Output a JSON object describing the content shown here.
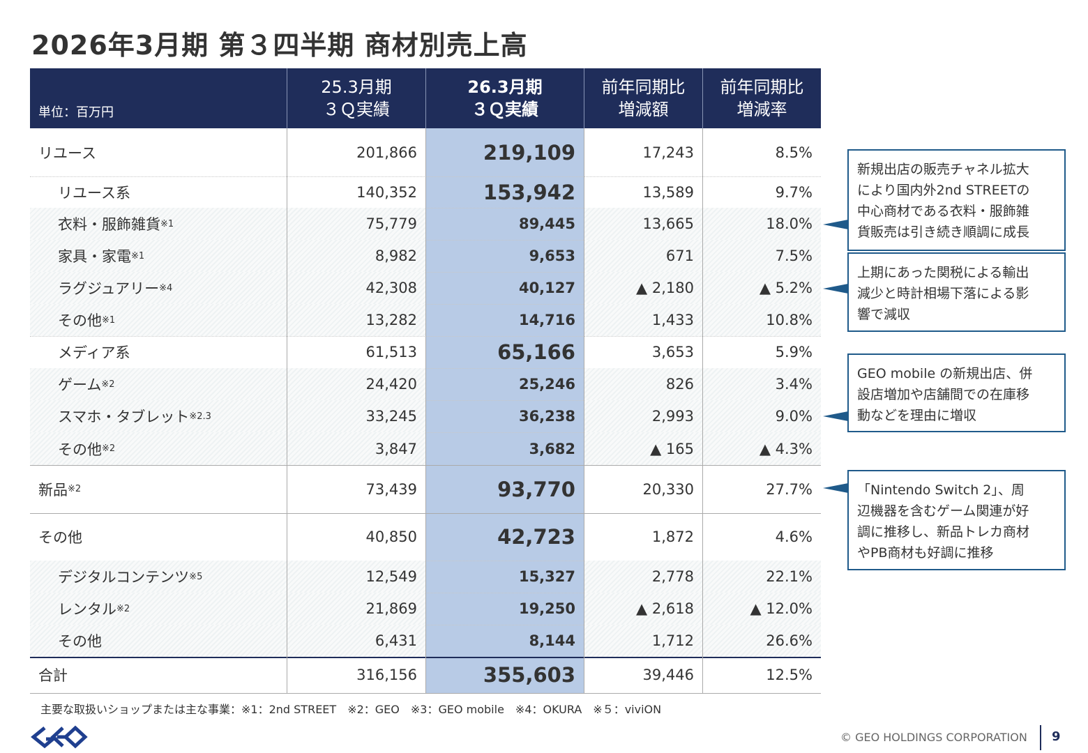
{
  "title": "2026年3月期 第３四半期 商材別売上高",
  "table": {
    "unit": "単位：百万円",
    "columns": [
      {
        "lines": [
          "25.3月期",
          "３Ｑ実績"
        ]
      },
      {
        "lines": [
          "26.3月期",
          "３Ｑ実績"
        ]
      },
      {
        "lines": [
          "前年同期比",
          "増減額"
        ]
      },
      {
        "lines": [
          "前年同期比",
          "増減率"
        ]
      }
    ],
    "rows": [
      {
        "label": "リユース",
        "cells": [
          "201,866",
          "219,109",
          "17,243",
          "8.5%"
        ]
      },
      {
        "label": "リユース系",
        "cells": [
          "140,352",
          "153,942",
          "13,589",
          "9.7%"
        ]
      },
      {
        "label": "衣料・服飾雑貨",
        "note": "※1",
        "cells": [
          "75,779",
          "89,445",
          "13,665",
          "18.0%"
        ]
      },
      {
        "label": "家具・家電",
        "note": "※1",
        "cells": [
          "8,982",
          "9,653",
          "671",
          "7.5%"
        ]
      },
      {
        "label": "ラグジュアリー",
        "note": "※4",
        "cells": [
          "42,308",
          "40,127",
          "▲ 2,180",
          "▲ 5.2%"
        ]
      },
      {
        "label": "その他",
        "note": "※1",
        "cells": [
          "13,282",
          "14,716",
          "1,433",
          "10.8%"
        ]
      },
      {
        "label": "メディア系",
        "cells": [
          "61,513",
          "65,166",
          "3,653",
          "5.9%"
        ]
      },
      {
        "label": "ゲーム",
        "note": "※2",
        "cells": [
          "24,420",
          "25,246",
          "826",
          "3.4%"
        ]
      },
      {
        "label": "スマホ・タブレット",
        "note": "※2.3",
        "cells": [
          "33,245",
          "36,238",
          "2,993",
          "9.0%"
        ]
      },
      {
        "label": "その他",
        "note": "※2",
        "cells": [
          "3,847",
          "3,682",
          "▲ 165",
          "▲ 4.3%"
        ]
      },
      {
        "label": "新品",
        "note": "※2",
        "cells": [
          "73,439",
          "93,770",
          "20,330",
          "27.7%"
        ]
      },
      {
        "label": "その他",
        "cells": [
          "40,850",
          "42,723",
          "1,872",
          "4.6%"
        ]
      },
      {
        "label": "デジタルコンテンツ",
        "note": "※5",
        "cells": [
          "12,549",
          "15,327",
          "2,778",
          "22.1%"
        ]
      },
      {
        "label": "レンタル",
        "note": "※2",
        "cells": [
          "21,869",
          "19,250",
          "▲ 2,618",
          "▲ 12.0%"
        ]
      },
      {
        "label": "その他",
        "cells": [
          "6,431",
          "8,144",
          "1,712",
          "26.6%"
        ]
      },
      {
        "label": "合計",
        "cells": [
          "316,156",
          "355,603",
          "39,446",
          "12.5%"
        ]
      }
    ]
  },
  "callouts": [
    {
      "lines": [
        "新規出店の販売チャネル拡大",
        "により国内外2nd STREETの",
        "中心商材である衣料・服飾雑",
        "貨販売は引き続き順調に成長"
      ]
    },
    {
      "lines": [
        "上期にあった関税による輸出",
        "減少と時計相場下落による影",
        "響で減収"
      ]
    },
    {
      "lines": [
        "GEO mobile の新規出店、併",
        "設店増加や店舗間での在庫移",
        "動などを理由に増収"
      ]
    },
    {
      "lines": [
        "「Nintendo Switch 2」、周",
        "辺機器を含むゲーム関連が好",
        "調に推移し、新品トレカ商材",
        "やPB商材も好調に推移"
      ]
    }
  ],
  "footnote": "主要な取扱いショップまたは主な事業：※1：2nd STREET　※2：GEO　※3：GEO mobile　※4：OKURA　※５：viviON",
  "copyright": "© GEO HOLDINGS CORPORATION",
  "page": "9"
}
